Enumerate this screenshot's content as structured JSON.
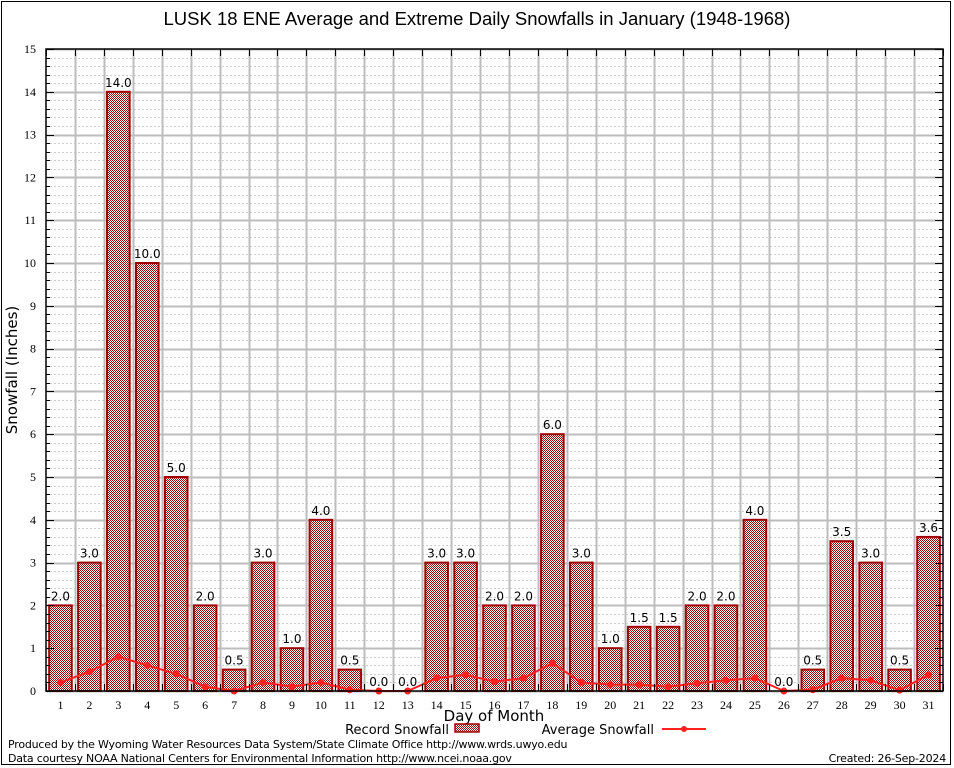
{
  "chart_data": {
    "type": "bar",
    "title": "LUSK 18 ENE Average and Extreme Daily Snowfalls in January (1948-1968)",
    "xlabel": "Day of Month",
    "ylabel": "Snowfall (Inches)",
    "ylim": [
      0,
      15
    ],
    "yticks": [
      0,
      1,
      2,
      3,
      4,
      5,
      6,
      7,
      8,
      9,
      10,
      11,
      12,
      13,
      14,
      15
    ],
    "grid": true,
    "legend_placement": "bottom-center",
    "categories": [
      "1",
      "2",
      "3",
      "4",
      "5",
      "6",
      "7",
      "8",
      "9",
      "10",
      "11",
      "12",
      "13",
      "14",
      "15",
      "16",
      "17",
      "18",
      "19",
      "20",
      "21",
      "22",
      "23",
      "24",
      "25",
      "26",
      "27",
      "28",
      "29",
      "30",
      "31"
    ],
    "series": [
      {
        "name": "Record Snowfall",
        "type": "bar",
        "color": "#a00000",
        "values": [
          2.0,
          3.0,
          14.0,
          10.0,
          5.0,
          2.0,
          0.5,
          3.0,
          1.0,
          4.0,
          0.5,
          0.0,
          0.0,
          3.0,
          3.0,
          2.0,
          2.0,
          6.0,
          3.0,
          1.0,
          1.5,
          1.5,
          2.0,
          2.0,
          4.0,
          0.0,
          0.5,
          3.5,
          3.0,
          0.5,
          3.6
        ],
        "labels": [
          "2.0",
          "3.0",
          "14.0",
          "10.0",
          "5.0",
          "2.0",
          "0.5",
          "3.0",
          "1.0",
          "4.0",
          "0.5",
          "0.0",
          "0.0",
          "3.0",
          "3.0",
          "2.0",
          "2.0",
          "6.0",
          "3.0",
          "1.0",
          "1.5",
          "1.5",
          "2.0",
          "2.0",
          "4.0",
          "0.0",
          "0.5",
          "3.5",
          "3.0",
          "0.5",
          "3.6"
        ]
      },
      {
        "name": "Average Snowfall",
        "type": "line",
        "color": "#ff2020",
        "values": [
          0.2,
          0.45,
          0.8,
          0.6,
          0.4,
          0.1,
          0.0,
          0.2,
          0.1,
          0.2,
          0.03,
          0.0,
          0.0,
          0.3,
          0.38,
          0.22,
          0.3,
          0.65,
          0.2,
          0.15,
          0.15,
          0.1,
          0.18,
          0.25,
          0.3,
          0.0,
          0.03,
          0.3,
          0.25,
          0.02,
          0.38
        ]
      }
    ]
  },
  "footer": {
    "produced_by": "Produced by the Wyoming Water Resources Data System/State Climate Office http://www.wrds.uwyo.edu",
    "data_courtesy": "Data courtesy NOAA National Centers for Environmental Information http://www.ncei.noaa.gov",
    "created": "Created: 26-Sep-2024"
  }
}
